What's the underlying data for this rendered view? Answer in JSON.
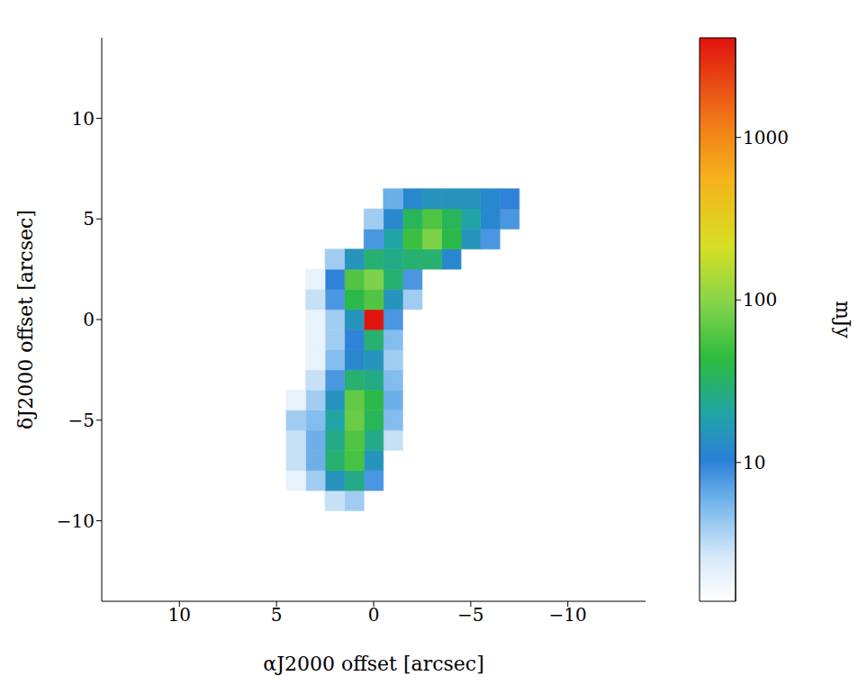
{
  "chart_data": {
    "type": "heatmap",
    "x_label": "αJ2000 offset [arcsec]",
    "y_label": "δJ2000 offset [arcsec]",
    "xlim": [
      14,
      -14
    ],
    "ylim": [
      -14,
      14
    ],
    "xticks": [
      10,
      5,
      0,
      {
        "value": -5,
        "label": "−5"
      },
      {
        "value": -10,
        "label": "−10"
      }
    ],
    "yticks": [
      {
        "value": -10,
        "label": "−10"
      },
      {
        "value": -5,
        "label": "−5"
      },
      0,
      5,
      10
    ],
    "x_edges": [
      -8.5,
      -7.5,
      -6.5,
      -5.5,
      -4.5,
      -3.5,
      -2.5,
      -1.5,
      -0.5,
      0.5,
      1.5,
      2.5,
      3.5,
      4.5
    ],
    "y_edges": [
      -9.5,
      -8.5,
      -7.5,
      -6.5,
      -5.5,
      -4.5,
      -3.5,
      -2.5,
      -1.5,
      -0.5,
      0.5,
      1.5,
      2.5,
      3.5,
      4.5,
      5.5,
      6.5,
      7.5
    ],
    "z": [
      [
        null,
        null,
        null,
        null,
        null,
        null,
        null,
        null,
        null,
        4,
        3,
        null,
        null
      ],
      [
        null,
        null,
        null,
        null,
        null,
        null,
        null,
        null,
        8,
        25,
        15,
        4,
        2
      ],
      [
        null,
        null,
        null,
        null,
        null,
        null,
        null,
        null,
        15,
        55,
        30,
        6,
        3
      ],
      [
        null,
        null,
        null,
        null,
        null,
        null,
        null,
        3,
        25,
        60,
        25,
        6,
        3
      ],
      [
        null,
        null,
        null,
        null,
        null,
        null,
        null,
        5,
        35,
        75,
        20,
        5,
        4
      ],
      [
        null,
        null,
        null,
        null,
        null,
        null,
        null,
        6,
        40,
        70,
        15,
        4,
        2
      ],
      [
        null,
        null,
        null,
        null,
        null,
        null,
        null,
        5,
        25,
        30,
        8,
        3,
        null
      ],
      [
        null,
        null,
        null,
        null,
        null,
        null,
        null,
        4,
        15,
        12,
        5,
        2,
        null
      ],
      [
        null,
        null,
        null,
        null,
        null,
        null,
        null,
        5,
        30,
        10,
        4,
        2,
        null
      ],
      [
        null,
        null,
        null,
        null,
        null,
        null,
        null,
        8,
        4000,
        15,
        4,
        2,
        null
      ],
      [
        null,
        null,
        null,
        null,
        null,
        null,
        4,
        15,
        60,
        40,
        8,
        3,
        null
      ],
      [
        null,
        null,
        null,
        null,
        null,
        null,
        8,
        30,
        90,
        60,
        10,
        2,
        null
      ],
      [
        null,
        null,
        null,
        null,
        12,
        30,
        30,
        25,
        30,
        15,
        4,
        null,
        null
      ],
      [
        null,
        null,
        8,
        15,
        40,
        90,
        50,
        20,
        8,
        null,
        null,
        null,
        null
      ],
      [
        null,
        8,
        12,
        20,
        35,
        60,
        35,
        12,
        4,
        null,
        null,
        null,
        null
      ],
      [
        null,
        10,
        12,
        15,
        15,
        15,
        12,
        6,
        null,
        null,
        null,
        null,
        null
      ],
      [
        null,
        null,
        null,
        null,
        null,
        null,
        null,
        null,
        null,
        null,
        null,
        null,
        null
      ]
    ],
    "colorbar": {
      "label": "mJy",
      "range": [
        1.4,
        4100
      ],
      "ticks": [
        10,
        100,
        1000
      ],
      "log": true
    }
  }
}
